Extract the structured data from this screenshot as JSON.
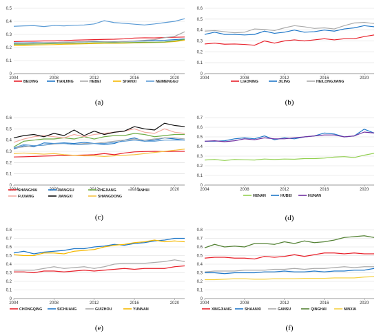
{
  "chart_data": [
    {
      "type": "line",
      "panel_label": "(a)",
      "x": [
        2004,
        2005,
        2006,
        2007,
        2008,
        2009,
        2010,
        2011,
        2012,
        2013,
        2014,
        2015,
        2016,
        2017,
        2018,
        2019,
        2020,
        2021
      ],
      "xticks": [
        "2004",
        "2008",
        "2012",
        "2016",
        "2020"
      ],
      "ylim": [
        0,
        0.5
      ],
      "yticks": [
        "0",
        "0.1",
        "0.2",
        "0.3",
        "0.4",
        "0.5"
      ],
      "series": [
        {
          "name": "BEIJING",
          "color": "#e8202a",
          "values": [
            0.245,
            0.247,
            0.248,
            0.25,
            0.25,
            0.252,
            0.256,
            0.258,
            0.26,
            0.262,
            0.263,
            0.266,
            0.272,
            0.274,
            0.273,
            0.276,
            0.278,
            0.28
          ]
        },
        {
          "name": "TIANJING",
          "color": "#1f77c8",
          "values": [
            0.235,
            0.235,
            0.236,
            0.237,
            0.238,
            0.24,
            0.242,
            0.244,
            0.246,
            0.245,
            0.244,
            0.246,
            0.248,
            0.25,
            0.252,
            0.255,
            0.26,
            0.265
          ]
        },
        {
          "name": "HEBEI",
          "color": "#aaaaaa",
          "values": [
            0.23,
            0.232,
            0.233,
            0.236,
            0.238,
            0.24,
            0.242,
            0.245,
            0.248,
            0.245,
            0.243,
            0.246,
            0.25,
            0.255,
            0.26,
            0.275,
            0.285,
            0.32
          ]
        },
        {
          "name": "SHANXI",
          "color": "#f5b800",
          "values": [
            0.215,
            0.215,
            0.218,
            0.22,
            0.222,
            0.225,
            0.226,
            0.228,
            0.23,
            0.232,
            0.232,
            0.233,
            0.235,
            0.236,
            0.238,
            0.24,
            0.245,
            0.255
          ]
        },
        {
          "name": "NEIMENGGU",
          "color": "#5b9bd5",
          "values": [
            0.362,
            0.365,
            0.367,
            0.36,
            0.368,
            0.365,
            0.37,
            0.372,
            0.38,
            0.405,
            0.39,
            0.385,
            0.378,
            0.372,
            0.38,
            0.39,
            0.4,
            0.42
          ]
        },
        {
          "name": "",
          "color": "#70ad47",
          "values": [
            0.225,
            0.225,
            0.226,
            0.228,
            0.23,
            0.232,
            0.233,
            0.234,
            0.236,
            0.237,
            0.236,
            0.237,
            0.238,
            0.24,
            0.24,
            0.242,
            0.25,
            0.262
          ]
        }
      ]
    },
    {
      "type": "line",
      "panel_label": "(b)",
      "x": [
        2004,
        2005,
        2006,
        2007,
        2008,
        2009,
        2010,
        2011,
        2012,
        2013,
        2014,
        2015,
        2016,
        2017,
        2018,
        2019,
        2020,
        2021
      ],
      "xticks": [
        "2004",
        "2008",
        "2012",
        "2016",
        "2020"
      ],
      "ylim": [
        0,
        0.6
      ],
      "yticks": [
        "0",
        "0.1",
        "0.2",
        "0.3",
        "0.4",
        "0.5",
        "0.6"
      ],
      "series": [
        {
          "name": "LIAONING",
          "color": "#e8202a",
          "values": [
            0.272,
            0.28,
            0.27,
            0.272,
            0.268,
            0.26,
            0.3,
            0.28,
            0.3,
            0.31,
            0.3,
            0.31,
            0.32,
            0.31,
            0.32,
            0.32,
            0.34,
            0.355
          ]
        },
        {
          "name": "JILING",
          "color": "#1f77c8",
          "values": [
            0.36,
            0.38,
            0.36,
            0.36,
            0.355,
            0.36,
            0.39,
            0.37,
            0.38,
            0.4,
            0.38,
            0.385,
            0.4,
            0.39,
            0.41,
            0.42,
            0.44,
            0.43
          ]
        },
        {
          "name": "HEILONGJIANG",
          "color": "#aaaaaa",
          "values": [
            0.39,
            0.395,
            0.385,
            0.375,
            0.38,
            0.41,
            0.405,
            0.395,
            0.42,
            0.44,
            0.43,
            0.415,
            0.42,
            0.41,
            0.44,
            0.465,
            0.47,
            0.46
          ]
        }
      ]
    },
    {
      "type": "line",
      "panel_label": "(c)",
      "x": [
        2004,
        2005,
        2006,
        2007,
        2008,
        2009,
        2010,
        2011,
        2012,
        2013,
        2014,
        2015,
        2016,
        2017,
        2018,
        2019,
        2020,
        2021
      ],
      "xticks": [
        "2004",
        "2008",
        "2012",
        "2016",
        "2020"
      ],
      "ylim": [
        0,
        0.6
      ],
      "yticks": [
        "0",
        "0.1",
        "0.2",
        "0.3",
        "0.4",
        "0.5",
        "0.6"
      ],
      "series": [
        {
          "name": "SHANGHAI",
          "color": "#e8202a",
          "values": [
            0.25,
            0.252,
            0.255,
            0.258,
            0.26,
            0.262,
            0.265,
            0.267,
            0.27,
            0.28,
            0.27,
            0.285,
            0.295,
            0.298,
            0.3,
            0.298,
            0.3,
            0.3
          ]
        },
        {
          "name": "JIANGSU",
          "color": "#1f77c8",
          "values": [
            0.32,
            0.35,
            0.34,
            0.375,
            0.37,
            0.375,
            0.37,
            0.38,
            0.37,
            0.36,
            0.37,
            0.4,
            0.42,
            0.39,
            0.4,
            0.42,
            0.41,
            0.4
          ]
        },
        {
          "name": "ZHEJIANG",
          "color": "#70ad47",
          "values": [
            0.34,
            0.39,
            0.4,
            0.41,
            0.41,
            0.42,
            0.41,
            0.43,
            0.41,
            0.43,
            0.44,
            0.44,
            0.46,
            0.45,
            0.43,
            0.44,
            0.45,
            0.45
          ]
        },
        {
          "name": "ANHUI",
          "color": "#aaaaaa",
          "values": [
            0.33,
            0.34,
            0.35,
            0.355,
            0.365,
            0.37,
            0.36,
            0.37,
            0.37,
            0.38,
            0.39,
            0.4,
            0.41,
            0.4,
            0.41,
            0.42,
            0.42,
            0.41
          ]
        },
        {
          "name": "FUJIANG",
          "color": "#f4a9a0",
          "values": [
            0.38,
            0.41,
            0.43,
            0.44,
            0.43,
            0.42,
            0.45,
            0.43,
            0.45,
            0.46,
            0.47,
            0.48,
            0.5,
            0.47,
            0.46,
            0.5,
            0.47,
            0.46
          ]
        },
        {
          "name": "JIANGXI",
          "color": "#111111",
          "values": [
            0.42,
            0.44,
            0.45,
            0.43,
            0.46,
            0.44,
            0.49,
            0.44,
            0.48,
            0.45,
            0.47,
            0.48,
            0.52,
            0.5,
            0.49,
            0.55,
            0.53,
            0.52
          ]
        },
        {
          "name": "SHANGDONG",
          "color": "#f5c242",
          "values": [
            0.28,
            0.285,
            0.28,
            0.275,
            0.28,
            0.27,
            0.265,
            0.26,
            0.26,
            0.255,
            0.26,
            0.265,
            0.27,
            0.28,
            0.29,
            0.3,
            0.31,
            0.32
          ]
        },
        {
          "name": "",
          "color": "#5b9bd5",
          "values": [
            0.33,
            0.36,
            0.35,
            0.355,
            0.37,
            0.37,
            0.36,
            0.36,
            0.37,
            0.37,
            0.38,
            0.39,
            0.4,
            0.39,
            0.39,
            0.4,
            0.4,
            0.4
          ]
        }
      ]
    },
    {
      "type": "line",
      "panel_label": "(d)",
      "x": [
        2004,
        2005,
        2006,
        2007,
        2008,
        2009,
        2010,
        2011,
        2012,
        2013,
        2014,
        2015,
        2016,
        2017,
        2018,
        2019,
        2020,
        2021
      ],
      "xticks": [
        "2004",
        "2008",
        "2012",
        "2016",
        "2020"
      ],
      "ylim": [
        0,
        0.7
      ],
      "yticks": [
        "0",
        "0.1",
        "0.2",
        "0.3",
        "0.4",
        "0.5",
        "0.6",
        "0.7"
      ],
      "series": [
        {
          "name": "HENAN",
          "color": "#92d050",
          "values": [
            0.26,
            0.265,
            0.255,
            0.265,
            0.262,
            0.26,
            0.27,
            0.265,
            0.27,
            0.268,
            0.275,
            0.275,
            0.28,
            0.29,
            0.295,
            0.285,
            0.31,
            0.33
          ]
        },
        {
          "name": "HUBEI",
          "color": "#1f77c8",
          "values": [
            0.455,
            0.455,
            0.46,
            0.48,
            0.49,
            0.48,
            0.51,
            0.47,
            0.49,
            0.48,
            0.5,
            0.51,
            0.54,
            0.53,
            0.5,
            0.51,
            0.58,
            0.54
          ]
        },
        {
          "name": "HUNAN",
          "color": "#7030a0",
          "values": [
            0.455,
            0.46,
            0.45,
            0.46,
            0.48,
            0.47,
            0.49,
            0.48,
            0.48,
            0.49,
            0.5,
            0.51,
            0.52,
            0.52,
            0.5,
            0.51,
            0.55,
            0.54
          ]
        }
      ]
    },
    {
      "type": "line",
      "panel_label": "(e)",
      "x": [
        2004,
        2005,
        2006,
        2007,
        2008,
        2009,
        2010,
        2011,
        2012,
        2013,
        2014,
        2015,
        2016,
        2017,
        2018,
        2019,
        2020,
        2021
      ],
      "xticks": [
        "2004",
        "2008",
        "2012",
        "2016",
        "2020"
      ],
      "ylim": [
        0,
        0.8
      ],
      "yticks": [
        "0",
        "0.1",
        "0.2",
        "0.3",
        "0.4",
        "0.5",
        "0.6",
        "0.7",
        "0.8"
      ],
      "series": [
        {
          "name": "CHONGQING",
          "color": "#e8202a",
          "values": [
            0.31,
            0.31,
            0.3,
            0.32,
            0.32,
            0.31,
            0.32,
            0.33,
            0.32,
            0.33,
            0.34,
            0.35,
            0.34,
            0.35,
            0.35,
            0.35,
            0.37,
            0.38
          ]
        },
        {
          "name": "SICHUANG",
          "color": "#1f77c8",
          "values": [
            0.53,
            0.55,
            0.52,
            0.54,
            0.55,
            0.56,
            0.58,
            0.58,
            0.6,
            0.61,
            0.63,
            0.62,
            0.64,
            0.65,
            0.67,
            0.68,
            0.7,
            0.7
          ]
        },
        {
          "name": "GUIZHOU",
          "color": "#aaaaaa",
          "values": [
            0.33,
            0.33,
            0.33,
            0.35,
            0.37,
            0.35,
            0.36,
            0.37,
            0.35,
            0.37,
            0.4,
            0.41,
            0.41,
            0.41,
            0.42,
            0.43,
            0.45,
            0.43
          ]
        },
        {
          "name": "YUNNAN",
          "color": "#f5b800",
          "values": [
            0.51,
            0.5,
            0.5,
            0.53,
            0.53,
            0.52,
            0.55,
            0.56,
            0.57,
            0.6,
            0.62,
            0.63,
            0.65,
            0.66,
            0.68,
            0.66,
            0.67,
            0.66
          ]
        }
      ]
    },
    {
      "type": "line",
      "panel_label": "(f)",
      "x": [
        2004,
        2005,
        2006,
        2007,
        2008,
        2009,
        2010,
        2011,
        2012,
        2013,
        2014,
        2015,
        2016,
        2017,
        2018,
        2019,
        2020,
        2021
      ],
      "xticks": [
        "2004",
        "2008",
        "2012",
        "2016",
        "2020"
      ],
      "ylim": [
        0,
        0.8
      ],
      "yticks": [
        "0",
        "0.1",
        "0.2",
        "0.3",
        "0.4",
        "0.5",
        "0.6",
        "0.7",
        "0.8"
      ],
      "series": [
        {
          "name": "XINGJIANG",
          "color": "#e8202a",
          "values": [
            0.47,
            0.48,
            0.48,
            0.47,
            0.47,
            0.46,
            0.49,
            0.48,
            0.49,
            0.51,
            0.49,
            0.51,
            0.53,
            0.53,
            0.52,
            0.53,
            0.52,
            0.52
          ]
        },
        {
          "name": "SHAANXI",
          "color": "#1f77c8",
          "values": [
            0.3,
            0.3,
            0.29,
            0.3,
            0.3,
            0.3,
            0.31,
            0.31,
            0.32,
            0.31,
            0.31,
            0.32,
            0.31,
            0.32,
            0.32,
            0.33,
            0.33,
            0.35
          ]
        },
        {
          "name": "GANSU",
          "color": "#aaaaaa",
          "values": [
            0.31,
            0.32,
            0.32,
            0.32,
            0.33,
            0.33,
            0.33,
            0.34,
            0.34,
            0.35,
            0.34,
            0.35,
            0.35,
            0.36,
            0.37,
            0.36,
            0.37,
            0.37
          ]
        },
        {
          "name": "QINGHAI",
          "color": "#548235",
          "values": [
            0.59,
            0.63,
            0.6,
            0.61,
            0.6,
            0.64,
            0.64,
            0.63,
            0.66,
            0.64,
            0.67,
            0.65,
            0.66,
            0.68,
            0.71,
            0.72,
            0.73,
            0.71
          ]
        },
        {
          "name": "NINXIA",
          "color": "#f5d142",
          "values": [
            0.22,
            0.22,
            0.225,
            0.23,
            0.23,
            0.225,
            0.225,
            0.23,
            0.23,
            0.23,
            0.235,
            0.235,
            0.235,
            0.24,
            0.24,
            0.24,
            0.25,
            0.255
          ]
        }
      ]
    }
  ]
}
